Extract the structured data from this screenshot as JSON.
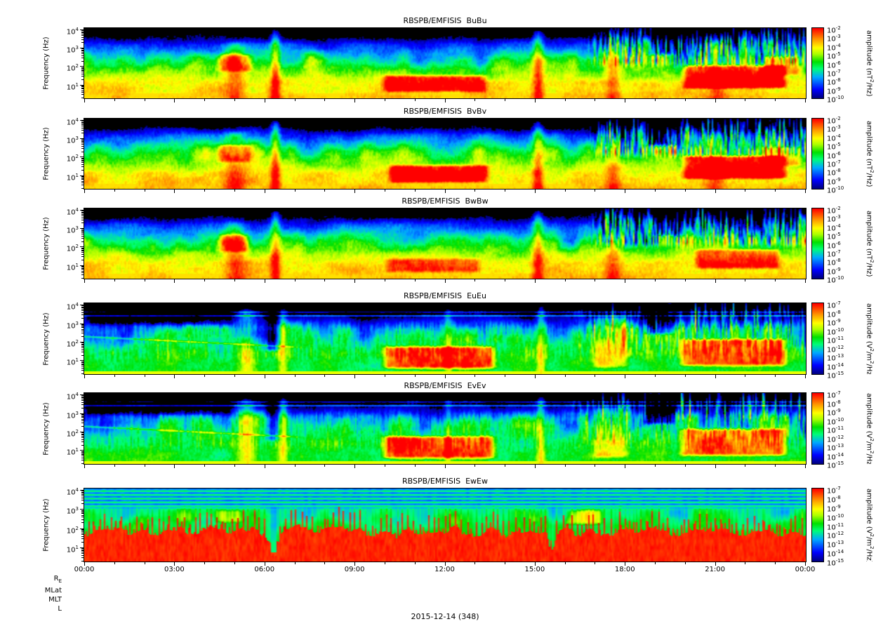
{
  "footer": {
    "rows": [
      {
        "base": "R",
        "sub": "E"
      },
      {
        "base": "MLat"
      },
      {
        "base": "MLT"
      },
      {
        "base": "L"
      }
    ],
    "date_label": "2015-12-14 (348)"
  },
  "chart_data": {
    "type": "heatmap",
    "subtype": "dynamic-power-spectrogram",
    "x_axis": {
      "ticks": [
        "00:00",
        "03:00",
        "06:00",
        "09:00",
        "12:00",
        "15:00",
        "18:00",
        "21:00",
        "00:00"
      ],
      "tick_hours": [
        0,
        3,
        6,
        9,
        12,
        15,
        18,
        21,
        24
      ],
      "range_hours": [
        0,
        24
      ],
      "minor_tick_every_hours": 1
    },
    "y_axis": {
      "label": "Frequency (Hz)",
      "scale": "log",
      "tick_exponents": [
        4,
        3,
        2,
        1
      ],
      "range_hz": [
        2,
        12000
      ],
      "log_range": [
        0.3,
        4.08
      ]
    },
    "colormap_stops": [
      [
        0.0,
        [
          0,
          0,
          130
        ]
      ],
      [
        0.12,
        [
          0,
          0,
          255
        ]
      ],
      [
        0.3,
        [
          0,
          170,
          255
        ]
      ],
      [
        0.42,
        [
          0,
          255,
          120
        ]
      ],
      [
        0.52,
        [
          0,
          225,
          0
        ]
      ],
      [
        0.63,
        [
          170,
          255,
          0
        ]
      ],
      [
        0.72,
        [
          255,
          255,
          0
        ]
      ],
      [
        0.85,
        [
          255,
          145,
          0
        ]
      ],
      [
        1.0,
        [
          255,
          0,
          0
        ]
      ]
    ],
    "under_color": [
      0,
      0,
      0
    ],
    "panels": [
      {
        "title": "RBSPB/EMFISIS  BuBu",
        "kind": "B",
        "seed": 11,
        "colorbar": {
          "label": "amplitude (nT^2/Hz)",
          "tick_exponents": [
            -2,
            -3,
            -4,
            -5,
            -6,
            -7,
            -8,
            -9,
            -10
          ]
        },
        "features": {
          "bursts": [
            {
              "t": 5.0,
              "w": 0.35,
              "a": 0.2,
              "lmax": 3.4
            },
            {
              "t": 6.35,
              "w": 0.16,
              "a": 0.32,
              "lmax": 4.1
            },
            {
              "t": 15.1,
              "w": 0.18,
              "a": 0.3,
              "lmax": 4.1
            },
            {
              "t": 17.6,
              "w": 0.25,
              "a": 0.22,
              "lmax": 4.1
            },
            {
              "t": 21.1,
              "w": 0.3,
              "a": 0.18,
              "lmax": 3.4
            }
          ],
          "patches": [
            {
              "t0": 4.4,
              "t1": 5.6,
              "l0": 1.7,
              "l1": 2.7,
              "a": 0.28
            },
            {
              "t0": 9.9,
              "t1": 13.4,
              "l0": 0.6,
              "l1": 1.55,
              "a": 0.34
            },
            {
              "t0": 19.9,
              "t1": 23.4,
              "l0": 0.8,
              "l1": 2.1,
              "a": 0.4
            },
            {
              "t0": 22.5,
              "t1": 23.9,
              "l0": 1.5,
              "l1": 2.6,
              "a": 0.24
            },
            {
              "t0": 18.7,
              "t1": 19.8,
              "l0": 2.6,
              "l1": 4.1,
              "a": -0.28
            }
          ]
        }
      },
      {
        "title": "RBSPB/EMFISIS  BvBv",
        "kind": "B",
        "seed": 23,
        "colorbar": {
          "label": "amplitude (nT^2/Hz)",
          "tick_exponents": [
            -2,
            -3,
            -4,
            -5,
            -6,
            -7,
            -8,
            -9,
            -10
          ]
        },
        "features": {
          "bursts": [
            {
              "t": 5.0,
              "w": 0.35,
              "a": 0.2,
              "lmax": 3.4
            },
            {
              "t": 6.35,
              "w": 0.16,
              "a": 0.34,
              "lmax": 4.1
            },
            {
              "t": 15.1,
              "w": 0.18,
              "a": 0.3,
              "lmax": 4.1
            },
            {
              "t": 17.6,
              "w": 0.25,
              "a": 0.2,
              "lmax": 4.1
            },
            {
              "t": 21.0,
              "w": 0.3,
              "a": 0.18,
              "lmax": 3.4
            }
          ],
          "patches": [
            {
              "t0": 4.4,
              "t1": 5.6,
              "l0": 1.7,
              "l1": 2.7,
              "a": 0.28
            },
            {
              "t0": 10.1,
              "t1": 13.5,
              "l0": 0.6,
              "l1": 1.6,
              "a": 0.36
            },
            {
              "t0": 19.9,
              "t1": 23.4,
              "l0": 0.8,
              "l1": 2.1,
              "a": 0.4
            },
            {
              "t0": 22.5,
              "t1": 23.9,
              "l0": 1.5,
              "l1": 2.6,
              "a": 0.24
            },
            {
              "t0": 18.7,
              "t1": 19.8,
              "l0": 2.6,
              "l1": 4.1,
              "a": -0.28
            }
          ]
        }
      },
      {
        "title": "RBSPB/EMFISIS  BwBw",
        "kind": "B",
        "seed": 37,
        "colorbar": {
          "label": "amplitude (nT^2/Hz)",
          "tick_exponents": [
            -2,
            -3,
            -4,
            -5,
            -6,
            -7,
            -8,
            -9,
            -10
          ]
        },
        "features": {
          "bursts": [
            {
              "t": 5.0,
              "w": 0.35,
              "a": 0.2,
              "lmax": 3.4
            },
            {
              "t": 6.35,
              "w": 0.16,
              "a": 0.3,
              "lmax": 4.1
            },
            {
              "t": 15.1,
              "w": 0.18,
              "a": 0.28,
              "lmax": 4.1
            },
            {
              "t": 17.6,
              "w": 0.25,
              "a": 0.2,
              "lmax": 4.1
            }
          ],
          "patches": [
            {
              "t0": 4.4,
              "t1": 5.5,
              "l0": 1.7,
              "l1": 2.7,
              "a": 0.26
            },
            {
              "t0": 10.0,
              "t1": 13.2,
              "l0": 0.6,
              "l1": 1.4,
              "a": 0.2
            },
            {
              "t0": 20.3,
              "t1": 23.2,
              "l0": 0.8,
              "l1": 1.9,
              "a": 0.3
            },
            {
              "t0": 18.8,
              "t1": 19.9,
              "l0": 2.6,
              "l1": 4.1,
              "a": -0.25
            }
          ]
        }
      },
      {
        "title": "RBSPB/EMFISIS  EuEu",
        "kind": "E",
        "seed": 53,
        "colorbar": {
          "label": "amplitude (V^2/m^2/Hz)",
          "tick_exponents": [
            -7,
            -8,
            -9,
            -10,
            -11,
            -12,
            -13,
            -14,
            -15
          ]
        },
        "features": {
          "bursts": [
            {
              "t": 5.4,
              "w": 0.3,
              "a": 0.26,
              "lmax": 3.9
            },
            {
              "t": 6.6,
              "w": 0.15,
              "a": 0.22,
              "lmax": 4.0
            },
            {
              "t": 15.2,
              "w": 0.15,
              "a": 0.28,
              "lmax": 4.1
            },
            {
              "t": 12.1,
              "w": 0.12,
              "a": 0.18,
              "lmax": 4.05
            }
          ],
          "patches": [
            {
              "t0": 9.9,
              "t1": 13.7,
              "l0": 0.55,
              "l1": 1.8,
              "a": 0.46
            },
            {
              "t0": 19.8,
              "t1": 23.4,
              "l0": 0.7,
              "l1": 2.2,
              "a": 0.42
            },
            {
              "t0": 16.9,
              "t1": 18.15,
              "l0": 0.6,
              "l1": 3.4,
              "a": 0.22
            },
            {
              "t0": 6.0,
              "t1": 6.5,
              "l0": 1.5,
              "l1": 3.7,
              "a": -0.26
            },
            {
              "t0": 18.6,
              "t1": 19.7,
              "l0": 2.4,
              "l1": 4.1,
              "a": -0.3
            },
            {
              "t0": 0.0,
              "t1": 5.0,
              "l0": 2.9,
              "l1": 4.1,
              "a": -0.15
            }
          ],
          "lines": [
            {
              "l": 3.42,
              "a": 0.3
            },
            {
              "l": 3.62,
              "a": 0.22
            }
          ]
        }
      },
      {
        "title": "RBSPB/EMFISIS  EvEv",
        "kind": "E",
        "seed": 67,
        "colorbar": {
          "label": "amplitude (V^2/m^2/Hz)",
          "tick_exponents": [
            -7,
            -8,
            -9,
            -10,
            -11,
            -12,
            -13,
            -14,
            -15
          ]
        },
        "features": {
          "bursts": [
            {
              "t": 5.4,
              "w": 0.3,
              "a": 0.26,
              "lmax": 3.9
            },
            {
              "t": 6.6,
              "w": 0.15,
              "a": 0.22,
              "lmax": 4.0
            },
            {
              "t": 15.2,
              "w": 0.15,
              "a": 0.28,
              "lmax": 4.1
            },
            {
              "t": 12.1,
              "w": 0.12,
              "a": 0.18,
              "lmax": 4.05
            }
          ],
          "patches": [
            {
              "t0": 9.9,
              "t1": 13.7,
              "l0": 0.55,
              "l1": 1.8,
              "a": 0.46
            },
            {
              "t0": 19.8,
              "t1": 23.4,
              "l0": 0.7,
              "l1": 2.2,
              "a": 0.42
            },
            {
              "t0": 16.9,
              "t1": 18.15,
              "l0": 0.6,
              "l1": 3.4,
              "a": 0.22
            },
            {
              "t0": 6.0,
              "t1": 6.5,
              "l0": 1.5,
              "l1": 3.7,
              "a": -0.26
            },
            {
              "t0": 18.6,
              "t1": 19.7,
              "l0": 2.4,
              "l1": 4.1,
              "a": -0.3
            },
            {
              "t0": 0.0,
              "t1": 5.0,
              "l0": 2.9,
              "l1": 4.1,
              "a": -0.15
            }
          ],
          "lines": [
            {
              "l": 3.42,
              "a": 0.3
            },
            {
              "l": 3.62,
              "a": 0.22
            }
          ]
        }
      },
      {
        "title": "RBSPB/EMFISIS  EwEw",
        "kind": "Ew",
        "seed": 79,
        "colorbar": {
          "label": "amplitude (V^2/m^2/Hz)",
          "tick_exponents": [
            -7,
            -8,
            -9,
            -10,
            -11,
            -12,
            -13,
            -14,
            -15
          ]
        },
        "features": {
          "dips": [
            {
              "t": 6.3,
              "w": 0.14,
              "a": 1.35
            },
            {
              "t": 15.55,
              "w": 0.11,
              "a": 1.15
            }
          ],
          "patches": [
            {
              "t0": 16.0,
              "t1": 17.3,
              "l0": 2.2,
              "l1": 3.0,
              "a": 0.18
            },
            {
              "t0": 4.3,
              "t1": 5.3,
              "l0": 2.3,
              "l1": 3.0,
              "a": 0.15
            }
          ]
        }
      }
    ]
  }
}
